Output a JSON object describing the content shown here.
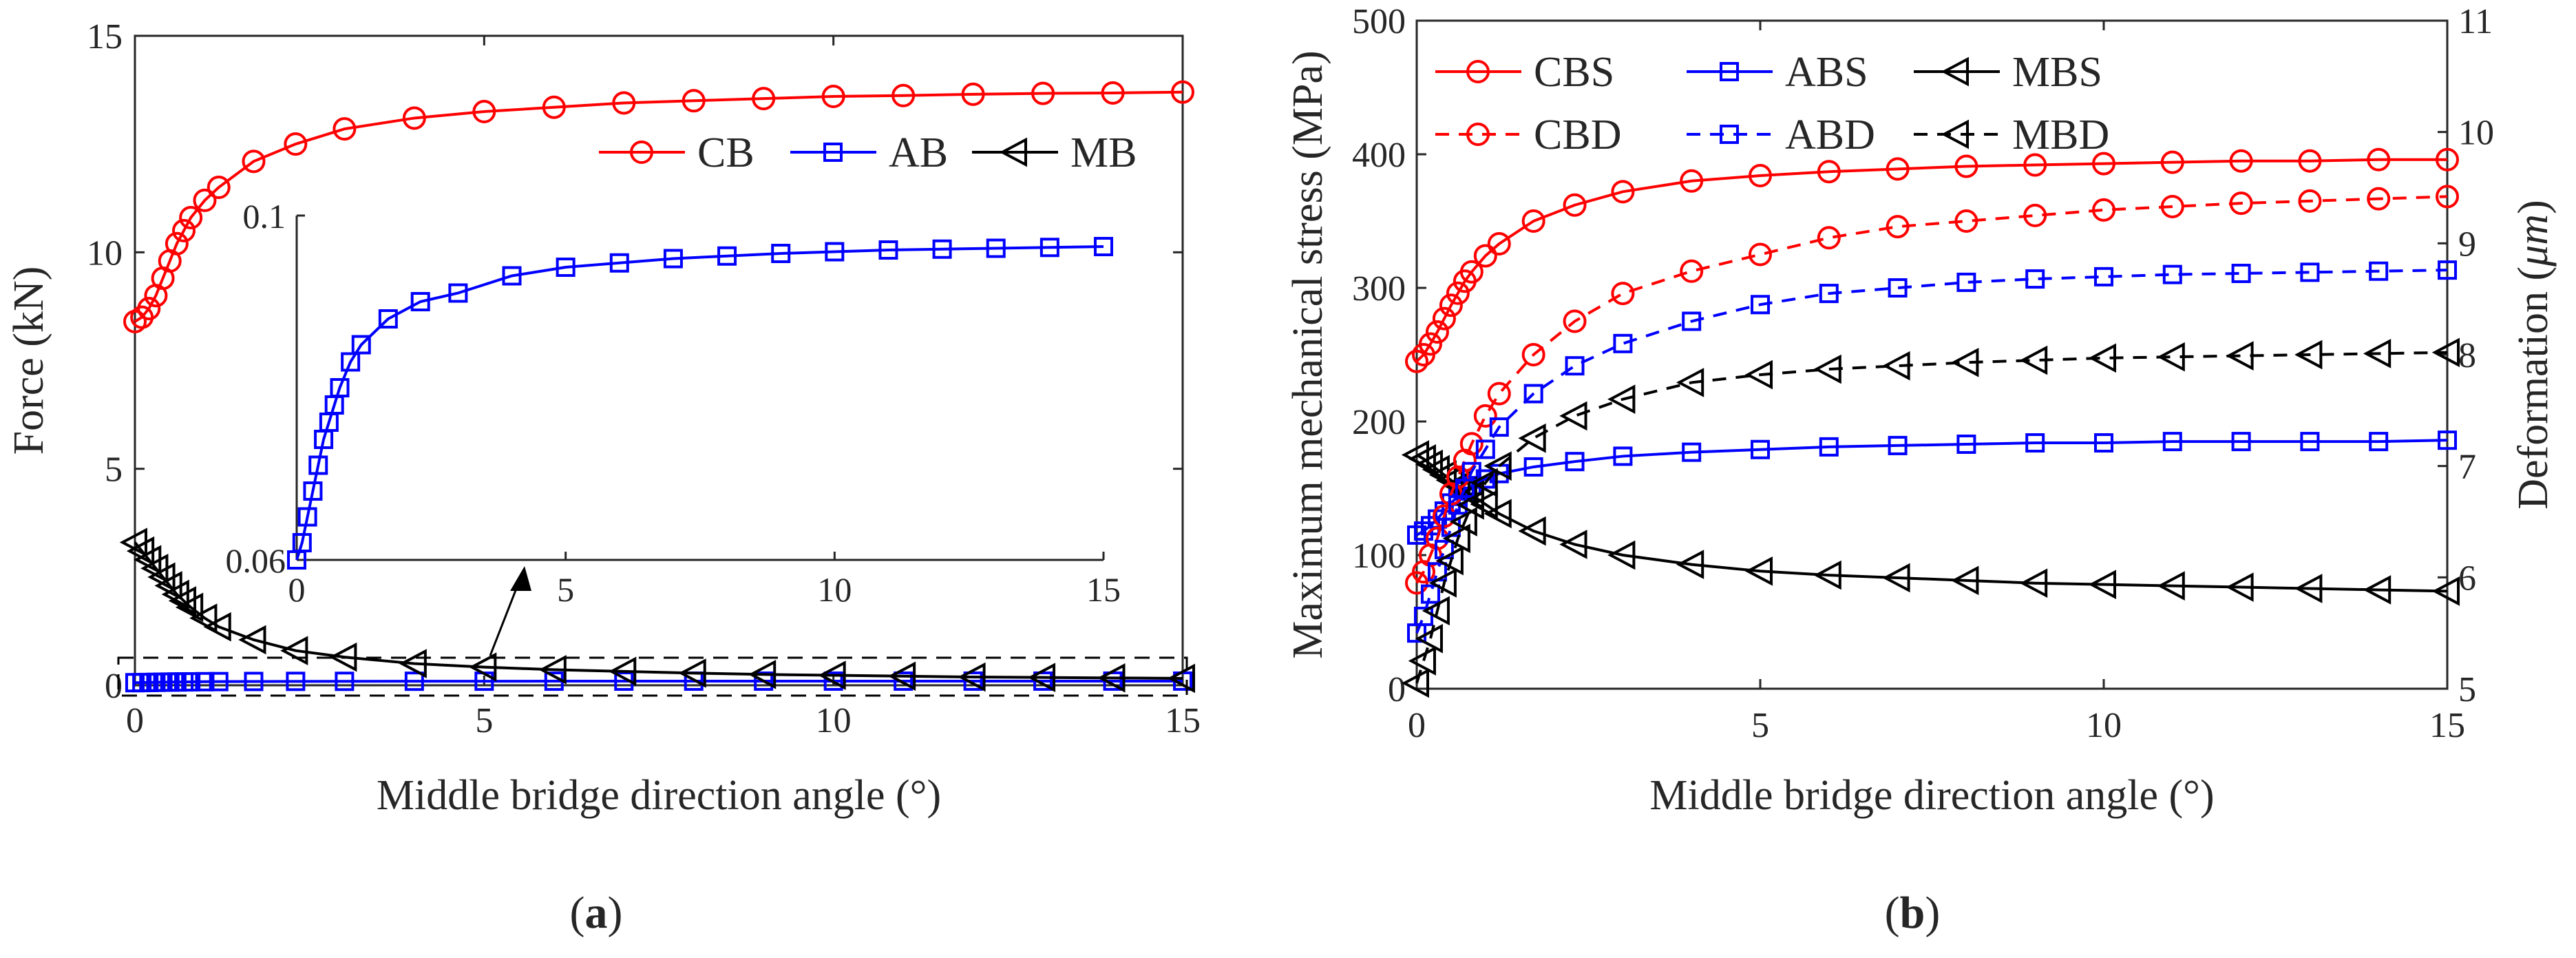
{
  "chart_data": [
    {
      "id": "a",
      "type": "line",
      "caption": "(a)",
      "caption_letter": "a",
      "xlabel": "Middle bridge direction angle (°)",
      "ylabel": "Force (kN)",
      "xlim": [
        0,
        15
      ],
      "ylim": [
        0,
        15
      ],
      "xticks": [
        "0",
        "5",
        "10",
        "15"
      ],
      "yticks": [
        "0",
        "5",
        "10",
        "15"
      ],
      "legend": [
        "CB",
        "AB",
        "MB"
      ],
      "x": [
        0,
        0.1,
        0.2,
        0.3,
        0.4,
        0.5,
        0.6,
        0.7,
        0.8,
        1.0,
        1.2,
        1.7,
        2.3,
        3,
        4,
        5,
        6,
        7,
        8,
        9,
        10,
        11,
        12,
        13,
        14,
        15
      ],
      "series": [
        {
          "name": "CB",
          "color": "#ff0000",
          "marker": "circle",
          "values": [
            8.4,
            8.5,
            8.7,
            9.0,
            9.4,
            9.8,
            10.2,
            10.5,
            10.8,
            11.2,
            11.5,
            12.1,
            12.5,
            12.85,
            13.1,
            13.25,
            13.35,
            13.45,
            13.5,
            13.55,
            13.6,
            13.62,
            13.65,
            13.67,
            13.68,
            13.7
          ]
        },
        {
          "name": "AB",
          "color": "#0000ff",
          "marker": "square",
          "values": [
            0.06,
            0.062,
            0.065,
            0.068,
            0.071,
            0.074,
            0.076,
            0.078,
            0.08,
            0.083,
            0.085,
            0.088,
            0.09,
            0.091,
            0.093,
            0.094,
            0.0945,
            0.095,
            0.0953,
            0.0956,
            0.0958,
            0.096,
            0.0961,
            0.0962,
            0.0963,
            0.0964
          ]
        },
        {
          "name": "MB",
          "color": "#000000",
          "marker": "triangle-left",
          "values": [
            3.3,
            3.1,
            2.9,
            2.7,
            2.5,
            2.3,
            2.1,
            1.95,
            1.8,
            1.55,
            1.35,
            1.05,
            0.8,
            0.65,
            0.5,
            0.42,
            0.36,
            0.32,
            0.28,
            0.25,
            0.23,
            0.21,
            0.19,
            0.18,
            0.17,
            0.16
          ]
        }
      ],
      "inset": {
        "series": "AB",
        "xlim": [
          0,
          15
        ],
        "ylim": [
          0.06,
          0.1
        ],
        "xticks": [
          "0",
          "5",
          "10",
          "15"
        ],
        "yticks": [
          "0.06",
          "0.1"
        ]
      }
    },
    {
      "id": "b",
      "type": "line",
      "caption": "(b)",
      "caption_letter": "b",
      "xlabel": "Middle bridge direction angle (°)",
      "ylabel": "Maximum mechanical stress (MPa)",
      "ylabel_right_prefix": "Deformation (",
      "ylabel_right_unit": "μm",
      "ylabel_right_suffix": ")",
      "xlim": [
        0,
        15
      ],
      "ylim": [
        0,
        500
      ],
      "y2lim": [
        5,
        11
      ],
      "xticks": [
        "0",
        "5",
        "10",
        "15"
      ],
      "yticks": [
        "0",
        "100",
        "200",
        "300",
        "400",
        "500"
      ],
      "y2ticks": [
        "5",
        "6",
        "7",
        "8",
        "9",
        "10",
        "11"
      ],
      "legend": [
        "CBS",
        "ABS",
        "MBS",
        "CBD",
        "ABD",
        "MBD"
      ],
      "x": [
        0,
        0.1,
        0.2,
        0.3,
        0.4,
        0.5,
        0.6,
        0.7,
        0.8,
        1.0,
        1.2,
        1.7,
        2.3,
        3,
        4,
        5,
        6,
        7,
        8,
        9,
        10,
        11,
        12,
        13,
        14,
        15
      ],
      "series": [
        {
          "name": "CBS",
          "axis": "left",
          "color": "#ff0000",
          "marker": "circle",
          "dash": false,
          "values": [
            245,
            250,
            258,
            267,
            277,
            287,
            296,
            305,
            312,
            324,
            333,
            350,
            362,
            372,
            380,
            384,
            387,
            389,
            391,
            392,
            393,
            394,
            395,
            395,
            396,
            396
          ]
        },
        {
          "name": "ABS",
          "axis": "left",
          "color": "#0000ff",
          "marker": "square",
          "dash": false,
          "values": [
            115,
            118,
            122,
            127,
            133,
            139,
            144,
            148,
            152,
            157,
            161,
            166,
            170,
            174,
            177,
            179,
            181,
            182,
            183,
            184,
            184,
            185,
            185,
            185,
            185,
            186
          ]
        },
        {
          "name": "MBS",
          "axis": "left",
          "color": "#000000",
          "marker": "triangle-left",
          "dash": false,
          "values": [
            175,
            172,
            168,
            164,
            160,
            156,
            152,
            148,
            145,
            138,
            131,
            118,
            108,
            100,
            93,
            88,
            85,
            83,
            81,
            79,
            78,
            77,
            76,
            75,
            74,
            73
          ]
        },
        {
          "name": "CBD",
          "axis": "right",
          "color": "#ff0000",
          "marker": "circle",
          "dash": true,
          "values": [
            5.95,
            6.05,
            6.2,
            6.35,
            6.55,
            6.75,
            6.9,
            7.05,
            7.2,
            7.45,
            7.65,
            8.0,
            8.3,
            8.55,
            8.75,
            8.9,
            9.05,
            9.15,
            9.2,
            9.25,
            9.3,
            9.33,
            9.36,
            9.38,
            9.4,
            9.42
          ]
        },
        {
          "name": "ABD",
          "axis": "right",
          "color": "#0000ff",
          "marker": "square",
          "dash": true,
          "values": [
            5.5,
            5.65,
            5.85,
            6.05,
            6.25,
            6.45,
            6.65,
            6.8,
            6.95,
            7.15,
            7.35,
            7.65,
            7.9,
            8.1,
            8.3,
            8.45,
            8.55,
            8.6,
            8.65,
            8.68,
            8.7,
            8.72,
            8.73,
            8.74,
            8.75,
            8.76
          ]
        },
        {
          "name": "MBD",
          "axis": "right",
          "color": "#000000",
          "marker": "triangle-left",
          "dash": true,
          "values": [
            5.05,
            5.25,
            5.45,
            5.7,
            5.95,
            6.15,
            6.35,
            6.5,
            6.65,
            6.85,
            7.0,
            7.25,
            7.45,
            7.6,
            7.75,
            7.82,
            7.87,
            7.9,
            7.93,
            7.95,
            7.97,
            7.98,
            7.99,
            8.0,
            8.01,
            8.02
          ]
        }
      ]
    }
  ]
}
